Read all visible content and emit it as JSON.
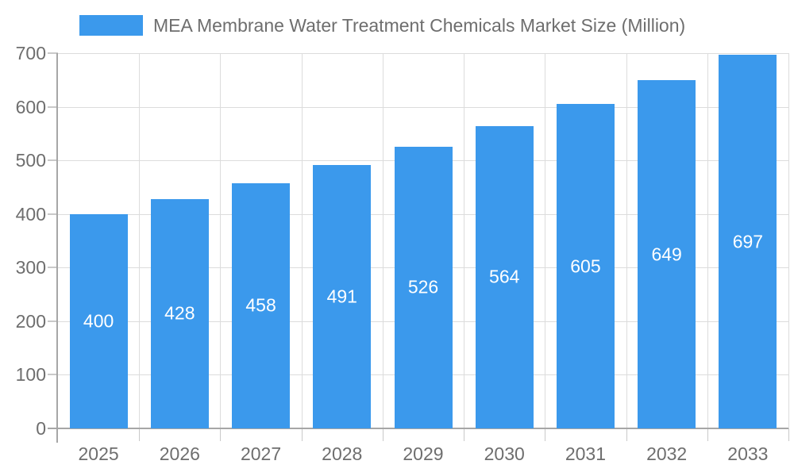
{
  "chart_data": {
    "type": "bar",
    "title": "MEA Membrane Water Treatment Chemicals Market Size (Million)",
    "series_name": "MEA Membrane Water Treatment Chemicals Market Size (Million)",
    "categories": [
      "2025",
      "2026",
      "2027",
      "2028",
      "2029",
      "2030",
      "2031",
      "2032",
      "2033"
    ],
    "values": [
      400,
      428,
      458,
      491,
      526,
      564,
      605,
      649,
      697
    ],
    "xlabel": "",
    "ylabel": "",
    "ylim": [
      0,
      700
    ],
    "yticks": [
      0,
      100,
      200,
      300,
      400,
      500,
      600,
      700
    ],
    "grid": true,
    "legend_position": "top",
    "colors": {
      "bar": "#3b99ec",
      "grid": "#dcdcdc",
      "axis": "#a6a6a6",
      "tick": "#c9c9c9",
      "text": "#6e6e6e",
      "value_label": "#ffffff",
      "background": "#ffffff"
    }
  }
}
